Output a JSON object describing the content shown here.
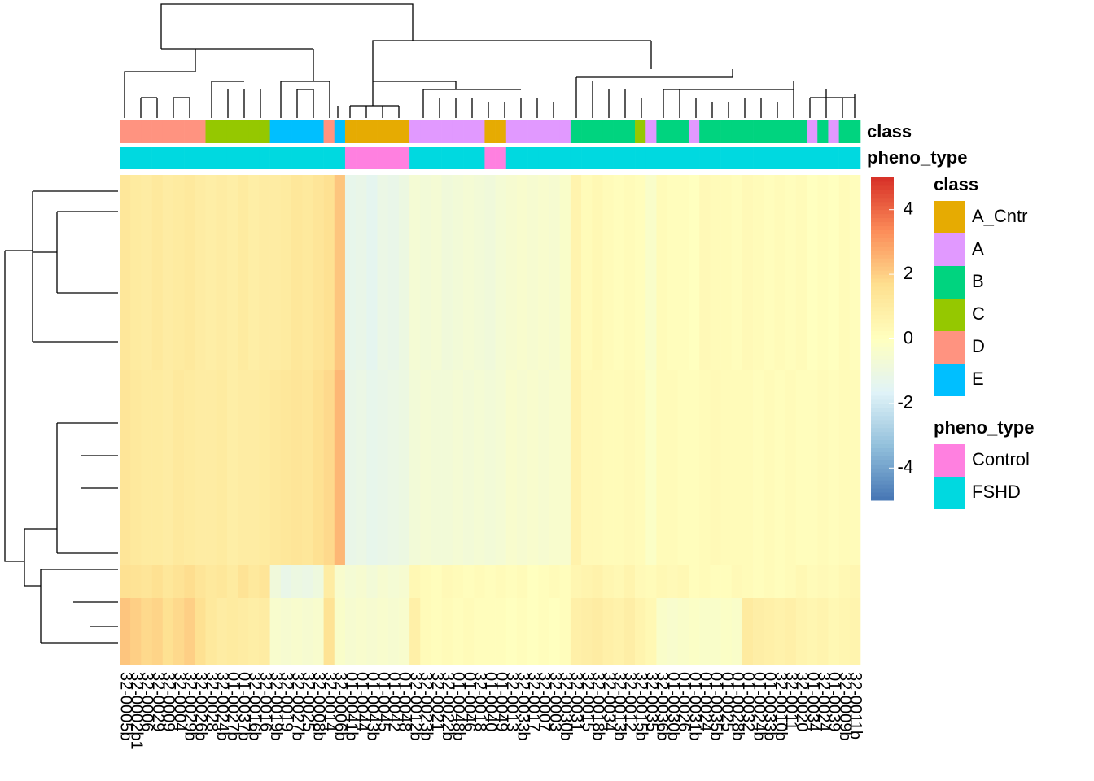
{
  "chart_data": {
    "type": "heatmap",
    "columns": [
      "32-0005b",
      "32-0002b1",
      "32-0006",
      "32-0029",
      "32-0009",
      "32-0004",
      "32-0029b",
      "32-0026b",
      "32-0028",
      "32-0024b",
      "01-0027b",
      "01-0037b",
      "32-0016b",
      "32-0016",
      "32-0019b",
      "32-0019",
      "32-0027b",
      "32-0025",
      "32-0008b",
      "32-0014",
      "32-0006b",
      "01-0041b",
      "01-0044",
      "01-0043b",
      "01-0045",
      "01-0042",
      "01-0048",
      "32-0012b",
      "32-0023b",
      "32-0021",
      "32-0022b",
      "01-0048b",
      "01-0046",
      "32-0018",
      "01-0040",
      "01-0049",
      "32-0013",
      "32-0033b",
      "32-0017",
      "32-0007",
      "32-0003",
      "32-0030b",
      "32-0031",
      "32-0015",
      "32-0018b",
      "32-0034",
      "32-0013b",
      "32-0012",
      "32-0015b",
      "32-0035",
      "32-0036b",
      "01-0030b",
      "01-0026",
      "01-0031b",
      "01-0024",
      "01-0035b",
      "01-0025",
      "01-0028b",
      "01-0032",
      "01-0024b",
      "01-0033b",
      "32-0010b",
      "32-0011",
      "32-0020",
      "01-0034",
      "32-0024",
      "01-0039",
      "32-0009b",
      "32-0011b"
    ],
    "annotations": [
      {
        "title": "class",
        "levels": [
          "A_Cntr",
          "A",
          "B",
          "C",
          "D",
          "E"
        ],
        "colors": [
          "#E6AB02",
          "#E199FF",
          "#00D47F",
          "#95C800",
          "#FF9380",
          "#00BFFF"
        ],
        "values": [
          "D",
          "D",
          "D",
          "D",
          "D",
          "D",
          "D",
          "D",
          "C",
          "C",
          "C",
          "C",
          "C",
          "C",
          "E",
          "E",
          "E",
          "E",
          "E",
          "D",
          "E",
          "A_Cntr",
          "A_Cntr",
          "A_Cntr",
          "A_Cntr",
          "A_Cntr",
          "A_Cntr",
          "A",
          "A",
          "A",
          "A",
          "A",
          "A",
          "A",
          "A_Cntr",
          "A_Cntr",
          "A",
          "A",
          "A",
          "A",
          "A",
          "A",
          "B",
          "B",
          "B",
          "B",
          "B",
          "B",
          "C",
          "A",
          "B",
          "B",
          "B",
          "A",
          "B",
          "B",
          "B",
          "B",
          "B",
          "B",
          "B",
          "B",
          "B",
          "B",
          "A",
          "B",
          "A",
          "B",
          "B"
        ]
      },
      {
        "title": "pheno_type",
        "levels": [
          "Control",
          "FSHD"
        ],
        "colors": [
          "#FF80E0",
          "#00D9E0"
        ],
        "values": [
          "FSHD",
          "FSHD",
          "FSHD",
          "FSHD",
          "FSHD",
          "FSHD",
          "FSHD",
          "FSHD",
          "FSHD",
          "FSHD",
          "FSHD",
          "FSHD",
          "FSHD",
          "FSHD",
          "FSHD",
          "FSHD",
          "FSHD",
          "FSHD",
          "FSHD",
          "FSHD",
          "FSHD",
          "Control",
          "Control",
          "Control",
          "Control",
          "Control",
          "Control",
          "FSHD",
          "FSHD",
          "FSHD",
          "FSHD",
          "FSHD",
          "FSHD",
          "FSHD",
          "Control",
          "Control",
          "FSHD",
          "FSHD",
          "FSHD",
          "FSHD",
          "FSHD",
          "FSHD",
          "FSHD",
          "FSHD",
          "FSHD",
          "FSHD",
          "FSHD",
          "FSHD",
          "FSHD",
          "FSHD",
          "FSHD",
          "FSHD",
          "FSHD",
          "FSHD",
          "FSHD",
          "FSHD",
          "FSHD",
          "FSHD",
          "FSHD",
          "FSHD",
          "FSHD",
          "FSHD",
          "FSHD",
          "FSHD",
          "FSHD",
          "FSHD",
          "FSHD",
          "FSHD",
          "FSHD"
        ]
      }
    ],
    "values": [
      [
        1.3,
        1.1,
        1.0,
        1.2,
        1.0,
        1.1,
        1.2,
        1.0,
        0.9,
        1.0,
        0.9,
        1.1,
        0.9,
        1.0,
        1.0,
        1.1,
        1.3,
        1.2,
        1.4,
        1.6,
        2.2,
        -1.3,
        -1.2,
        -1.4,
        -1.1,
        -1.2,
        -1.0,
        -0.6,
        -0.7,
        -0.6,
        -0.8,
        -0.7,
        -0.6,
        -0.7,
        -0.8,
        -0.6,
        -0.5,
        -0.4,
        -0.5,
        -0.4,
        -0.5,
        -0.3,
        0.6,
        0.2,
        0.4,
        0.2,
        0.1,
        0.2,
        0.1,
        -0.3,
        0.2,
        0.1,
        0.1,
        0.0,
        0.3,
        0.2,
        0.2,
        0.1,
        0.3,
        0.2,
        0.1,
        0.2,
        0.1,
        0.2,
        0.0,
        0.1,
        0.0,
        0.2,
        0.1
      ],
      [
        1.4,
        1.2,
        1.1,
        1.1,
        1.0,
        1.2,
        1.1,
        1.0,
        1.0,
        1.1,
        0.9,
        1.0,
        1.0,
        1.1,
        1.2,
        1.3,
        1.4,
        1.3,
        1.6,
        1.8,
        2.5,
        -1.2,
        -1.1,
        -1.3,
        -1.2,
        -1.1,
        -1.0,
        -0.7,
        -0.6,
        -0.7,
        -0.7,
        -0.6,
        -0.7,
        -0.6,
        -0.7,
        -0.6,
        -0.4,
        -0.5,
        -0.4,
        -0.5,
        -0.4,
        -0.4,
        0.7,
        0.3,
        0.3,
        0.2,
        0.2,
        0.3,
        0.2,
        -0.2,
        0.2,
        0.2,
        0.1,
        0.1,
        0.2,
        0.3,
        0.2,
        0.2,
        0.2,
        0.1,
        0.2,
        0.1,
        0.2,
        0.1,
        0.1,
        0.2,
        0.1,
        0.2,
        0.2
      ],
      [
        1.6,
        1.5,
        1.4,
        1.6,
        1.3,
        1.5,
        1.7,
        1.4,
        1.2,
        1.3,
        1.1,
        1.5,
        1.2,
        1.4,
        -0.8,
        -1.2,
        -1.0,
        -1.1,
        -0.9,
        1.0,
        -0.4,
        -0.6,
        -0.5,
        -0.7,
        -0.5,
        -0.6,
        -0.5,
        0.4,
        0.2,
        0.1,
        0.3,
        0.2,
        0.1,
        0.2,
        0.1,
        0.2,
        0.1,
        0.2,
        0.0,
        0.1,
        0.2,
        0.1,
        0.5,
        0.6,
        0.7,
        0.5,
        0.4,
        0.6,
        0.3,
        0.2,
        0.4,
        0.3,
        0.4,
        0.1,
        0.2,
        0.1,
        0.1,
        0.3,
        0.2,
        0.1,
        0.2,
        0.1,
        0.2,
        0.4,
        0.2,
        0.3,
        0.2,
        0.4,
        0.5
      ],
      [
        2.2,
        2.0,
        1.8,
        1.9,
        1.6,
        1.8,
        2.0,
        1.6,
        1.2,
        1.0,
        1.1,
        1.0,
        0.9,
        1.0,
        -0.4,
        -0.5,
        -0.4,
        -0.5,
        -0.4,
        1.5,
        -0.3,
        -0.5,
        -0.4,
        -0.5,
        -0.4,
        -0.5,
        -0.4,
        0.8,
        0.2,
        0.1,
        0.2,
        0.1,
        0.2,
        0.1,
        0.1,
        0.1,
        0.0,
        0.1,
        0.0,
        0.1,
        0.0,
        0.1,
        0.8,
        0.9,
        1.0,
        0.8,
        0.7,
        0.9,
        0.6,
        0.4,
        -0.3,
        -0.4,
        -0.3,
        -0.2,
        -0.3,
        -0.3,
        -0.2,
        -0.3,
        1.1,
        0.9,
        0.8,
        0.7,
        0.8,
        0.6,
        0.5,
        0.6,
        0.4,
        0.5,
        0.6
      ]
    ],
    "zlim": [
      -5,
      5
    ],
    "zticks": [
      -4,
      -2,
      0,
      2,
      4
    ],
    "colorscale": [
      "#4575B4",
      "#91BFDB",
      "#E0F3F8",
      "#FFFFBF",
      "#FEE090",
      "#FC8D59",
      "#D73027"
    ]
  }
}
